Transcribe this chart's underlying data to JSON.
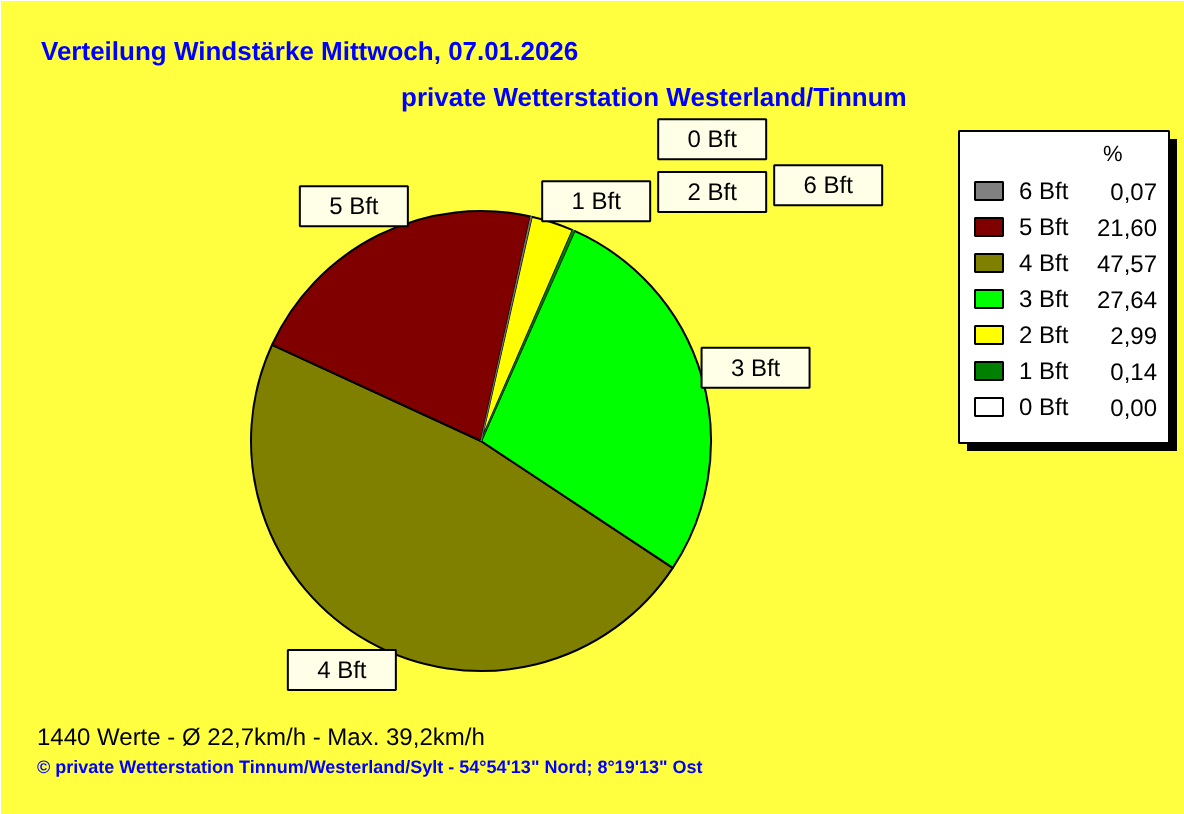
{
  "chart_data": {
    "type": "pie",
    "title": "Verteilung Windstärke  Mittwoch, 07.01.2026",
    "subtitle": "private Wetterstation Westerland/Tinnum",
    "categories": [
      "6 Bft",
      "5 Bft",
      "4 Bft",
      "3 Bft",
      "2 Bft",
      "1 Bft",
      "0 Bft"
    ],
    "values": [
      0.07,
      21.6,
      47.57,
      27.64,
      2.99,
      0.14,
      0.0
    ],
    "value_labels": [
      "0,07",
      "21,60",
      "47,57",
      "27,64",
      "2,99",
      "0,14",
      "0,00"
    ],
    "colors": [
      "#808080",
      "#800000",
      "#808000",
      "#00ff00",
      "#ffff00",
      "#008000",
      "#ffffff"
    ],
    "legend_title": "%",
    "legend": "top right",
    "annotations": [
      "1440 Werte   -   Ø 22,7km/h  -  Max. 39,2km/h",
      "© private Wetterstation Tinnum/Westerland/Sylt   -   54°54'13\" Nord; 8°19'13\" Ost"
    ]
  }
}
